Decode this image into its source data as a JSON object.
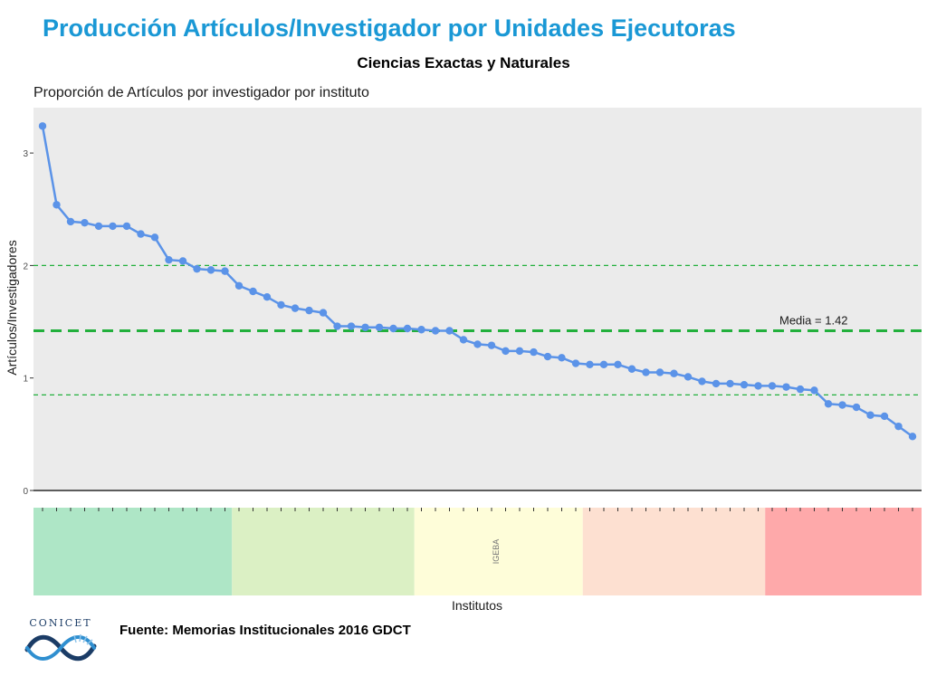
{
  "slide": {
    "title": "Producción Artículos/Investigador por Unidades Ejecutoras",
    "subtitle": "Ciencias Exactas y Naturales",
    "source": "Fuente: Memorias Institucionales 2016 GDCT",
    "logo_text": "CONICET"
  },
  "colors": {
    "title": "#1a98d5",
    "line": "#5b93e8",
    "panel": "#ebebeb",
    "mean_line": "#22b03c",
    "bands": [
      "#aee6c6",
      "#dbf0c4",
      "#fefdd9",
      "#fde0d1",
      "#fea9aa"
    ],
    "logo": "#1b3c66",
    "logo_accent": "#2f8fd0"
  },
  "chart_data": {
    "type": "line",
    "title": "Proporción de Artículos por investigador por instituto",
    "xlabel": "Institutos",
    "ylabel": "Artículos/Investigadores",
    "ylim": [
      0,
      3.4
    ],
    "yticks": [
      0,
      1,
      2,
      3
    ],
    "grid": false,
    "series": [
      {
        "values": [
          3.24,
          2.54,
          2.39,
          2.38,
          2.35,
          2.35,
          2.35,
          2.28,
          2.25,
          2.05,
          2.04,
          1.97,
          1.96,
          1.95,
          1.82,
          1.77,
          1.72,
          1.65,
          1.62,
          1.6,
          1.58,
          1.46,
          1.46,
          1.45,
          1.45,
          1.44,
          1.44,
          1.43,
          1.42,
          1.42,
          1.34,
          1.3,
          1.29,
          1.24,
          1.24,
          1.23,
          1.19,
          1.18,
          1.13,
          1.12,
          1.12,
          1.12,
          1.08,
          1.05,
          1.05,
          1.04,
          1.01,
          0.97,
          0.95,
          0.95,
          0.94,
          0.93,
          0.93,
          0.92,
          0.9,
          0.89,
          0.77,
          0.76,
          0.74,
          0.67,
          0.66,
          0.57,
          0.48
        ]
      }
    ],
    "reference_lines": [
      {
        "value": 1.42,
        "label": "Media = 1.42",
        "style": "bold-dashed"
      },
      {
        "value": 2.0,
        "label": "",
        "style": "dashed"
      },
      {
        "value": 0.85,
        "label": "",
        "style": "dashed"
      }
    ],
    "category_bands": [
      {
        "label": "",
        "count": 14
      },
      {
        "label": "",
        "count": 13
      },
      {
        "label": "IGEBA",
        "count": 12
      },
      {
        "label": "",
        "count": 13
      },
      {
        "label": "",
        "count": 11
      }
    ]
  }
}
